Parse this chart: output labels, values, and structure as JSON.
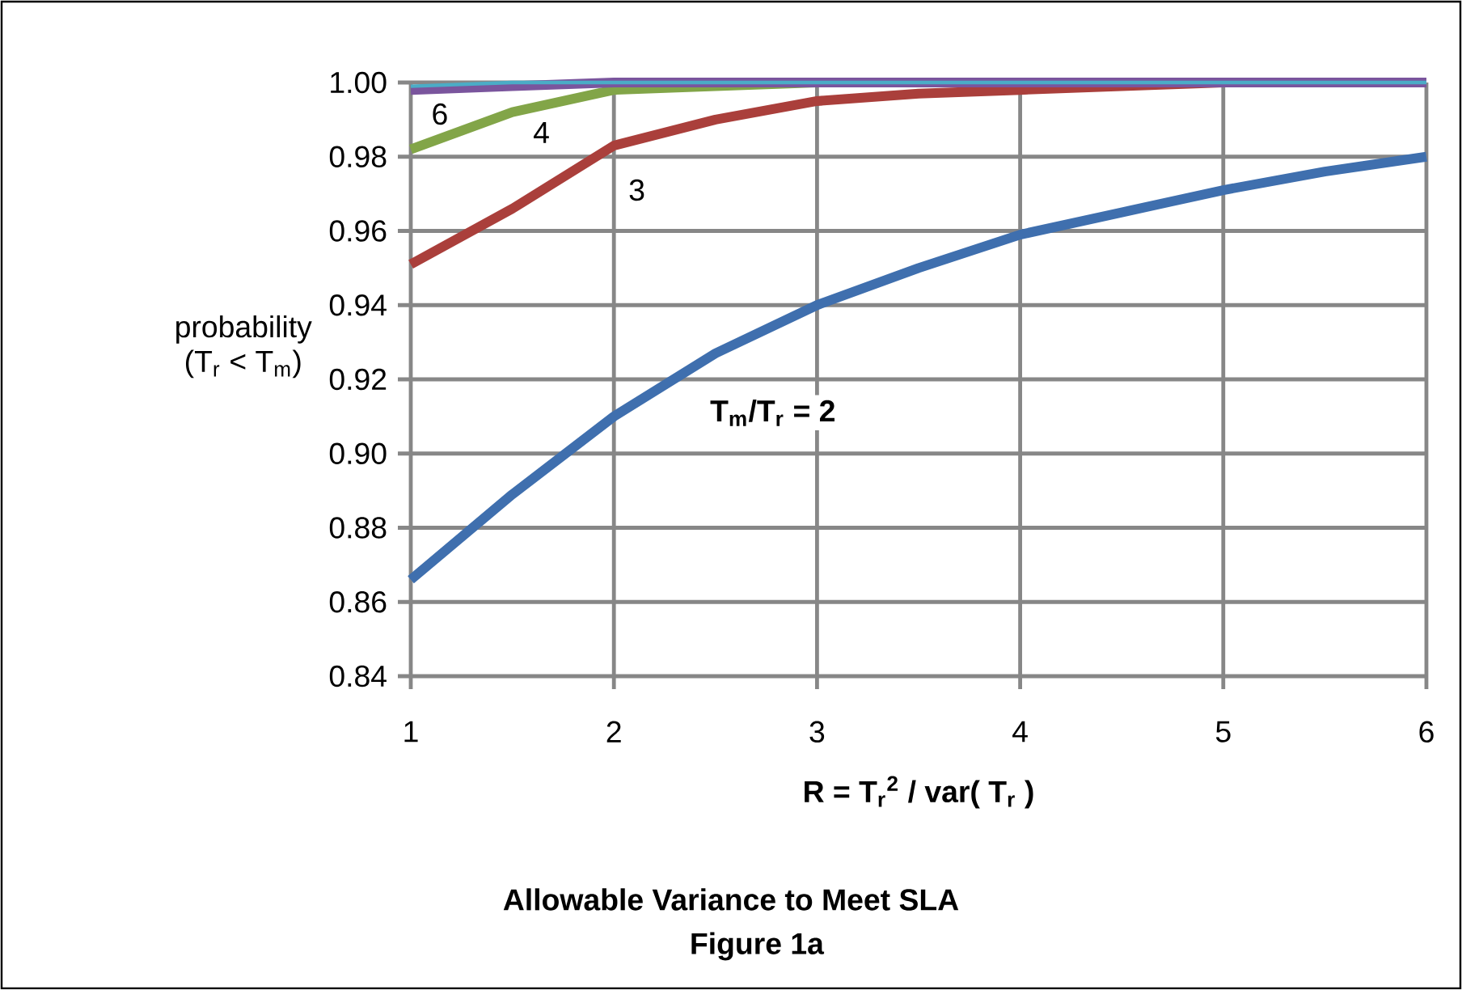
{
  "chart_data": {
    "type": "line",
    "title": "**Allowable Variance to Meet SLA**",
    "subtitle": "**Figure 1a**",
    "xlabel": "**R = T$_{r}$$^{2}$ / var( T$_{r}$ )**",
    "ylabel": "probability (T$_{r}$ < T$_{m}$)",
    "x": [
      1,
      1.5,
      2,
      2.5,
      3,
      3.5,
      4,
      4.5,
      5,
      5.5,
      6
    ],
    "xlim": [
      1,
      6
    ],
    "xticks": [
      1,
      2,
      3,
      4,
      5,
      6
    ],
    "ylim": [
      0.84,
      1.0
    ],
    "yticks": [
      {
        "value": 0.84,
        "label": "0.84"
      },
      {
        "value": 0.86,
        "label": "0.86"
      },
      {
        "value": 0.88,
        "label": "0.88"
      },
      {
        "value": 0.9,
        "label": "0.90"
      },
      {
        "value": 0.92,
        "label": "0.92"
      },
      {
        "value": 0.94,
        "label": "0.94"
      },
      {
        "value": 0.96,
        "label": "0.96"
      },
      {
        "value": 0.98,
        "label": "0.98"
      },
      {
        "value": 1.0,
        "label": "1.00"
      }
    ],
    "grid": true,
    "line_style": "solid",
    "marker": "none",
    "series": [
      {
        "name": "**T$_{m}$/T$_{r}$ = 2**",
        "color": "#3f6fae",
        "values": [
          0.866,
          0.889,
          0.91,
          0.927,
          0.94,
          0.95,
          0.959,
          0.965,
          0.971,
          0.976,
          0.98
        ]
      },
      {
        "name": "3",
        "color": "#aa3f3b",
        "values": [
          0.951,
          0.966,
          0.983,
          0.99,
          0.995,
          0.997,
          0.998,
          0.999,
          1.0,
          1.0,
          1.0
        ]
      },
      {
        "name": "4",
        "color": "#82a548",
        "values": [
          0.982,
          0.992,
          0.998,
          0.999,
          1.0,
          null,
          null,
          null,
          null,
          null,
          null
        ]
      },
      {
        "name": "6",
        "color": "#7a559d",
        "values": [
          0.998,
          0.999,
          1.0,
          1.0,
          1.0,
          1.0,
          1.0,
          1.0,
          1.0,
          1.0,
          1.0
        ]
      },
      {
        "color": "#4bacc6",
        "values": [
          0.999,
          1.0,
          1.0,
          1.0,
          1.0,
          1.0,
          1.0,
          1.0,
          1.0,
          1.0,
          1.0
        ]
      }
    ]
  }
}
